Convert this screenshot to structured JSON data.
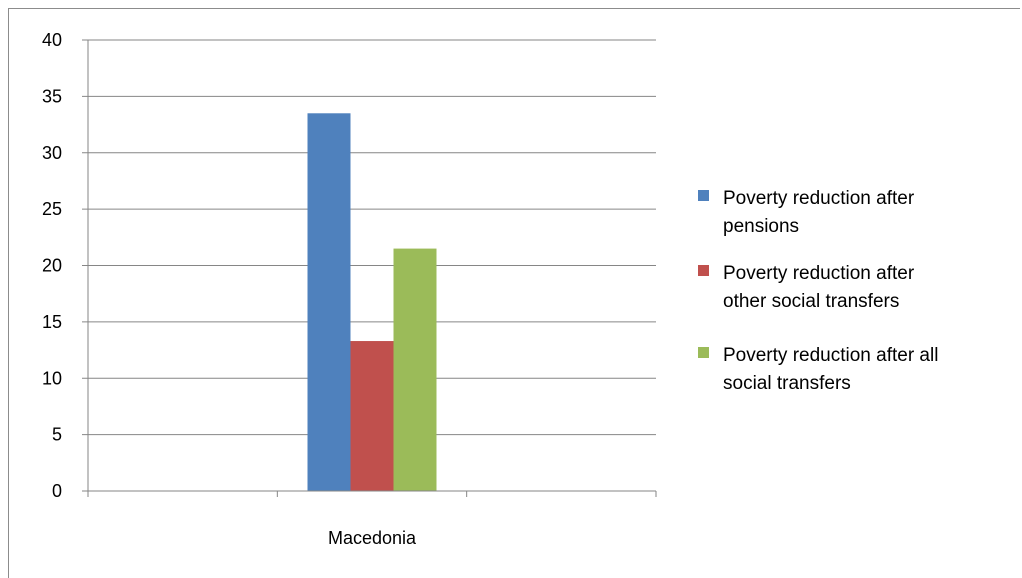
{
  "chart_data": {
    "type": "bar",
    "categories": [
      "Macedonia"
    ],
    "series": [
      {
        "name": "Poverty reduction after pensions",
        "values": [
          33.5
        ],
        "color": "#4f81bd"
      },
      {
        "name": "Poverty reduction after other social transfers",
        "values": [
          13.3
        ],
        "color": "#c0504d"
      },
      {
        "name": "Poverty reduction after all social transfers",
        "values": [
          21.5
        ],
        "color": "#9bbb59"
      }
    ],
    "ylim": [
      0,
      40
    ],
    "yticks": [
      0,
      5,
      10,
      15,
      20,
      25,
      30,
      35,
      40
    ],
    "grid": true,
    "legend_position": "right",
    "legend_lines": [
      [
        "Poverty reduction after",
        "pensions"
      ],
      [
        "Poverty reduction after",
        "other social transfers"
      ],
      [
        "Poverty reduction after all",
        "social transfers"
      ]
    ]
  }
}
